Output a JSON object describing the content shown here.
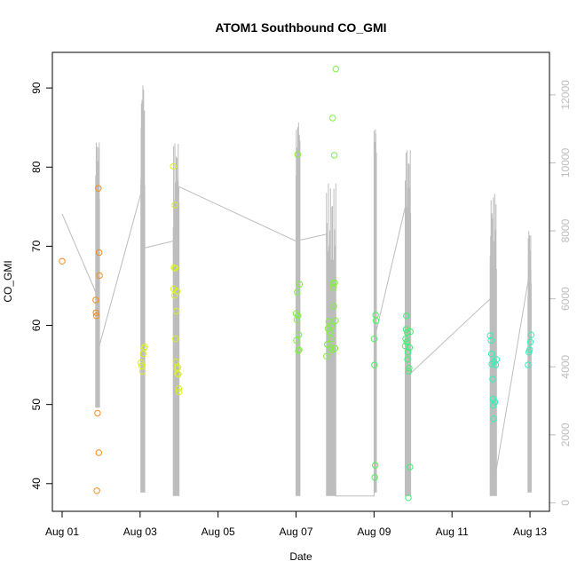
{
  "chart_data": {
    "type": "scatter",
    "title": "ATOM1 Southbound CO_GMI",
    "xlabel": "Date",
    "ylabel": "CO_GMI",
    "x_ticks": [
      "Aug 01",
      "Aug 03",
      "Aug 05",
      "Aug 07",
      "Aug 09",
      "Aug 11",
      "Aug 13"
    ],
    "x_tick_values": [
      0,
      2,
      4,
      6,
      8,
      10,
      12
    ],
    "xlim": [
      -0.25,
      12.5
    ],
    "ylim": [
      36.5,
      94.5
    ],
    "y_ticks": [
      40,
      50,
      60,
      70,
      80,
      90
    ],
    "y2_ticks": [
      0,
      2000,
      4000,
      6000,
      8000,
      10000,
      12000
    ],
    "y2lim": [
      -250,
      13250
    ],
    "y2_color": "#bdbdbd",
    "grid": false,
    "points": [
      {
        "x": 0.0,
        "y": 68.1,
        "color": "#f58b1f"
      },
      {
        "x": 0.86,
        "y": 63.2,
        "color": "#f58b1f"
      },
      {
        "x": 0.87,
        "y": 61.6,
        "color": "#f58b1f"
      },
      {
        "x": 0.88,
        "y": 61.2,
        "color": "#f58b1f"
      },
      {
        "x": 0.89,
        "y": 39.1,
        "color": "#f58b1f"
      },
      {
        "x": 0.91,
        "y": 48.9,
        "color": "#f58b1f"
      },
      {
        "x": 0.93,
        "y": 77.3,
        "color": "#f58b1f"
      },
      {
        "x": 0.94,
        "y": 43.9,
        "color": "#f58b1f"
      },
      {
        "x": 0.95,
        "y": 69.2,
        "color": "#f58b1f"
      },
      {
        "x": 0.96,
        "y": 66.3,
        "color": "#f58b1f"
      },
      {
        "x": 2.02,
        "y": 55.3,
        "color": "#d9f025"
      },
      {
        "x": 2.04,
        "y": 54.9,
        "color": "#d9f025"
      },
      {
        "x": 2.06,
        "y": 54.2,
        "color": "#d9f025"
      },
      {
        "x": 2.08,
        "y": 56.4,
        "color": "#d9f025"
      },
      {
        "x": 2.1,
        "y": 57.1,
        "color": "#d9f025"
      },
      {
        "x": 2.12,
        "y": 57.3,
        "color": "#d9f025"
      },
      {
        "x": 2.85,
        "y": 80.1,
        "color": "#d9f025"
      },
      {
        "x": 2.86,
        "y": 64.6,
        "color": "#d9f025"
      },
      {
        "x": 2.87,
        "y": 67.3,
        "color": "#d9f025"
      },
      {
        "x": 2.88,
        "y": 63.8,
        "color": "#d9f025"
      },
      {
        "x": 2.89,
        "y": 75.2,
        "color": "#d9f025"
      },
      {
        "x": 2.9,
        "y": 67.2,
        "color": "#d9f025"
      },
      {
        "x": 2.91,
        "y": 58.3,
        "color": "#d9f025"
      },
      {
        "x": 2.92,
        "y": 55.4,
        "color": "#d9f025"
      },
      {
        "x": 2.93,
        "y": 61.8,
        "color": "#d9f025"
      },
      {
        "x": 2.94,
        "y": 54.6,
        "color": "#d9f025"
      },
      {
        "x": 2.95,
        "y": 64.3,
        "color": "#d9f025"
      },
      {
        "x": 2.96,
        "y": 53.9,
        "color": "#d9f025"
      },
      {
        "x": 2.97,
        "y": 54.7,
        "color": "#d9f025"
      },
      {
        "x": 2.98,
        "y": 53.8,
        "color": "#d9f025"
      },
      {
        "x": 2.99,
        "y": 52.0,
        "color": "#d9f025"
      },
      {
        "x": 3.0,
        "y": 51.6,
        "color": "#d9f025"
      },
      {
        "x": 6.0,
        "y": 61.5,
        "color": "#7cf23c"
      },
      {
        "x": 6.01,
        "y": 58.1,
        "color": "#7cf23c"
      },
      {
        "x": 6.02,
        "y": 60.7,
        "color": "#7cf23c"
      },
      {
        "x": 6.03,
        "y": 64.2,
        "color": "#7cf23c"
      },
      {
        "x": 6.04,
        "y": 81.6,
        "color": "#7cf23c"
      },
      {
        "x": 6.05,
        "y": 61.2,
        "color": "#7cf23c"
      },
      {
        "x": 6.06,
        "y": 56.8,
        "color": "#7cf23c"
      },
      {
        "x": 6.07,
        "y": 58.8,
        "color": "#7cf23c"
      },
      {
        "x": 6.08,
        "y": 56.9,
        "color": "#7cf23c"
      },
      {
        "x": 6.09,
        "y": 65.2,
        "color": "#7cf23c"
      },
      {
        "x": 6.78,
        "y": 56.1,
        "color": "#7cf23c"
      },
      {
        "x": 6.8,
        "y": 57.6,
        "color": "#7cf23c"
      },
      {
        "x": 6.82,
        "y": 59.6,
        "color": "#7cf23c"
      },
      {
        "x": 6.84,
        "y": 60.5,
        "color": "#7cf23c"
      },
      {
        "x": 6.86,
        "y": 59.1,
        "color": "#7cf23c"
      },
      {
        "x": 6.88,
        "y": 57.2,
        "color": "#7cf23c"
      },
      {
        "x": 6.9,
        "y": 58.3,
        "color": "#7cf23c"
      },
      {
        "x": 6.92,
        "y": 59.9,
        "color": "#7cf23c"
      },
      {
        "x": 6.93,
        "y": 56.9,
        "color": "#7cf23c"
      },
      {
        "x": 6.94,
        "y": 86.2,
        "color": "#7cf23c"
      },
      {
        "x": 6.95,
        "y": 65.3,
        "color": "#7cf23c"
      },
      {
        "x": 6.96,
        "y": 64.8,
        "color": "#7cf23c"
      },
      {
        "x": 6.97,
        "y": 62.4,
        "color": "#7cf23c"
      },
      {
        "x": 6.98,
        "y": 81.5,
        "color": "#7cf23c"
      },
      {
        "x": 6.99,
        "y": 65.4,
        "color": "#7cf23c"
      },
      {
        "x": 7.0,
        "y": 57.1,
        "color": "#7cf23c"
      },
      {
        "x": 7.01,
        "y": 60.6,
        "color": "#7cf23c"
      },
      {
        "x": 7.02,
        "y": 92.4,
        "color": "#7cf23c"
      },
      {
        "x": 8.0,
        "y": 58.3,
        "color": "#4df25a"
      },
      {
        "x": 8.01,
        "y": 55.0,
        "color": "#4df25a"
      },
      {
        "x": 8.02,
        "y": 40.8,
        "color": "#4df25a"
      },
      {
        "x": 8.03,
        "y": 42.3,
        "color": "#4df25a"
      },
      {
        "x": 8.04,
        "y": 61.3,
        "color": "#4df25a"
      },
      {
        "x": 8.05,
        "y": 60.6,
        "color": "#4df25a"
      },
      {
        "x": 8.8,
        "y": 57.4,
        "color": "#3cf26e"
      },
      {
        "x": 8.81,
        "y": 58.3,
        "color": "#3cf26e"
      },
      {
        "x": 8.82,
        "y": 59.5,
        "color": "#3cf26e"
      },
      {
        "x": 8.83,
        "y": 61.2,
        "color": "#3cf26e"
      },
      {
        "x": 8.84,
        "y": 57.9,
        "color": "#3cf26e"
      },
      {
        "x": 8.85,
        "y": 59.1,
        "color": "#3cf26e"
      },
      {
        "x": 8.86,
        "y": 55.7,
        "color": "#3cf26e"
      },
      {
        "x": 8.87,
        "y": 56.6,
        "color": "#3cf26e"
      },
      {
        "x": 8.88,
        "y": 38.2,
        "color": "#3cf26e"
      },
      {
        "x": 8.89,
        "y": 54.2,
        "color": "#3cf26e"
      },
      {
        "x": 8.9,
        "y": 54.6,
        "color": "#3cf26e"
      },
      {
        "x": 8.91,
        "y": 57.2,
        "color": "#3cf26e"
      },
      {
        "x": 8.92,
        "y": 42.1,
        "color": "#3cf26e"
      },
      {
        "x": 8.93,
        "y": 59.2,
        "color": "#3cf26e"
      },
      {
        "x": 10.98,
        "y": 58.7,
        "color": "#2ff2b4"
      },
      {
        "x": 11.0,
        "y": 58.1,
        "color": "#2ff2b4"
      },
      {
        "x": 11.01,
        "y": 56.4,
        "color": "#2ff2b4"
      },
      {
        "x": 11.02,
        "y": 55.1,
        "color": "#2ff2b4"
      },
      {
        "x": 11.04,
        "y": 53.2,
        "color": "#2ff2b4"
      },
      {
        "x": 11.05,
        "y": 50.7,
        "color": "#2ff2b4"
      },
      {
        "x": 11.06,
        "y": 49.9,
        "color": "#2ff2b4"
      },
      {
        "x": 11.07,
        "y": 48.2,
        "color": "#2ff2b4"
      },
      {
        "x": 11.08,
        "y": 55.4,
        "color": "#2ff2b4"
      },
      {
        "x": 11.1,
        "y": 50.3,
        "color": "#2ff2b4"
      },
      {
        "x": 11.12,
        "y": 55.0,
        "color": "#2ff2b4"
      },
      {
        "x": 11.14,
        "y": 55.7,
        "color": "#2ff2b4"
      },
      {
        "x": 11.95,
        "y": 55.0,
        "color": "#2ff2b4"
      },
      {
        "x": 11.97,
        "y": 56.6,
        "color": "#2ff2b4"
      },
      {
        "x": 11.99,
        "y": 56.9,
        "color": "#2ff2b4"
      },
      {
        "x": 12.01,
        "y": 57.9,
        "color": "#2ff2b4"
      },
      {
        "x": 12.03,
        "y": 58.8,
        "color": "#2ff2b4"
      }
    ],
    "line_series_y2": [
      [
        0.0,
        8500
      ],
      [
        0.45,
        7300
      ],
      [
        0.86,
        6200
      ],
      [
        0.88,
        5400
      ],
      [
        0.9,
        6400
      ],
      [
        0.92,
        4800
      ],
      [
        0.93,
        5200
      ],
      [
        0.95,
        4600
      ],
      [
        2.02,
        9100
      ],
      [
        2.08,
        11400
      ],
      [
        2.12,
        7500
      ],
      [
        2.12,
        7500
      ],
      [
        2.85,
        7700
      ],
      [
        2.87,
        5500
      ],
      [
        2.9,
        7200
      ],
      [
        2.96,
        7700
      ],
      [
        3.0,
        9300
      ],
      [
        5.99,
        7700
      ],
      [
        6.78,
        7900
      ],
      [
        6.8,
        4500
      ],
      [
        7.02,
        200
      ],
      [
        8.0,
        200
      ],
      [
        8.05,
        5000
      ],
      [
        8.8,
        8700
      ],
      [
        8.85,
        4200
      ],
      [
        8.9,
        4000
      ],
      [
        8.93,
        3800
      ],
      [
        10.98,
        6000
      ],
      [
        11.0,
        200
      ],
      [
        11.14,
        1000
      ],
      [
        11.95,
        6500
      ],
      [
        12.0,
        7200
      ]
    ],
    "spike_clusters_y2": [
      {
        "x_from": 0.86,
        "x_to": 0.96,
        "low": 2800,
        "high": 10600
      },
      {
        "x_from": 2.02,
        "x_to": 2.12,
        "low": 300,
        "high": 12300
      },
      {
        "x_from": 2.85,
        "x_to": 3.0,
        "low": 200,
        "high": 10600
      },
      {
        "x_from": 6.0,
        "x_to": 6.1,
        "low": 200,
        "high": 11200
      },
      {
        "x_from": 6.78,
        "x_to": 7.02,
        "low": 200,
        "high": 9400
      },
      {
        "x_from": 8.0,
        "x_to": 8.06,
        "low": 300,
        "high": 11000
      },
      {
        "x_from": 8.8,
        "x_to": 8.94,
        "low": 200,
        "high": 10400
      },
      {
        "x_from": 10.98,
        "x_to": 11.14,
        "low": 200,
        "high": 9100
      },
      {
        "x_from": 11.95,
        "x_to": 12.03,
        "low": 300,
        "high": 8000
      }
    ]
  }
}
